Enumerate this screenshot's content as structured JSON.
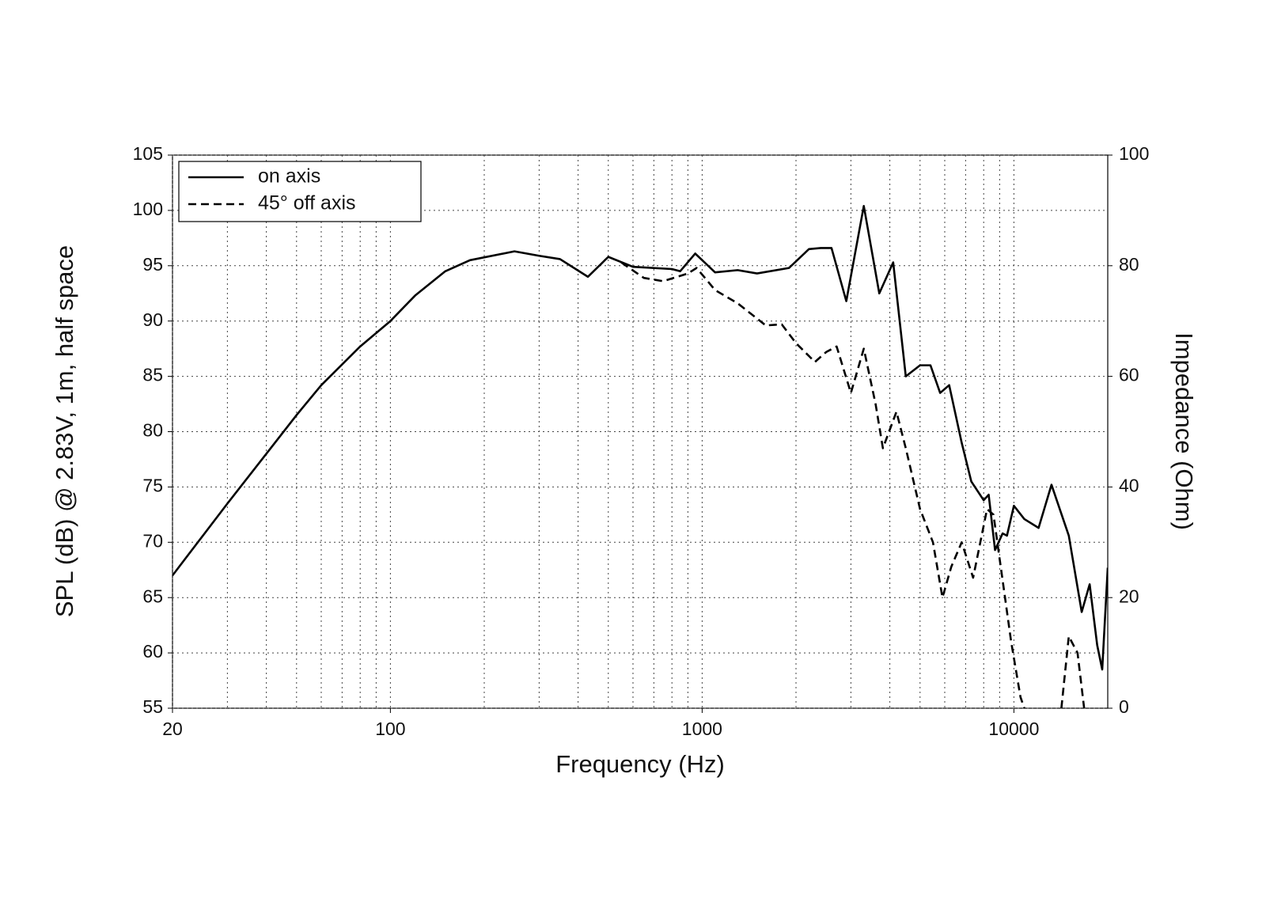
{
  "chart_data": {
    "type": "line",
    "x_label": "Frequency (Hz)",
    "y_label": "SPL (dB) @ 2.83V, 1m, half space",
    "y2_label": "Impedance (Ohm)",
    "xscale": "log",
    "xlim": [
      20,
      20000
    ],
    "xticks": [
      20,
      100,
      1000,
      10000
    ],
    "ylim": [
      55,
      105
    ],
    "yticks": [
      55,
      60,
      65,
      70,
      75,
      80,
      85,
      90,
      95,
      100,
      105
    ],
    "y2lim": [
      0,
      100
    ],
    "y2ticks": [
      0,
      20,
      40,
      60,
      80,
      100
    ],
    "grid": true,
    "legend": "top-left",
    "series": [
      {
        "name": "on axis",
        "color": "#000000",
        "style": "solid",
        "x": [
          20,
          30,
          40,
          50,
          60,
          80,
          100,
          120,
          150,
          180,
          250,
          300,
          350,
          430,
          500,
          600,
          800,
          850,
          950,
          1100,
          1300,
          1500,
          1900,
          2200,
          2400,
          2600,
          2900,
          3300,
          3700,
          4100,
          4500,
          5000,
          5400,
          5800,
          6200,
          6800,
          7300,
          8000,
          8300,
          8700,
          9200,
          9500,
          10000,
          10800,
          12000,
          13200,
          15000,
          16500,
          17500,
          18500,
          19200,
          20000
        ],
        "values": [
          67,
          73.5,
          78,
          81.5,
          84.2,
          87.7,
          90,
          92.3,
          94.5,
          95.5,
          96.3,
          95.9,
          95.6,
          94,
          95.8,
          94.9,
          94.7,
          94.5,
          96.1,
          94.4,
          94.6,
          94.3,
          94.8,
          96.5,
          96.6,
          96.6,
          91.8,
          100.4,
          92.5,
          95.3,
          85,
          86,
          86,
          83.5,
          84.2,
          79,
          75.5,
          73.8,
          74.3,
          69.3,
          70.8,
          70.6,
          73.3,
          72.1,
          71.3,
          75.2,
          70.6,
          63.7,
          66.2,
          60.7,
          58.5,
          67.7
        ]
      },
      {
        "name": "45° off axis",
        "color": "#000000",
        "style": "dashed",
        "x": [
          550,
          650,
          750,
          900,
          960,
          1100,
          1300,
          1600,
          1800,
          2000,
          2300,
          2500,
          2700,
          3000,
          3300,
          3600,
          3800,
          4200,
          4500,
          5000,
          5500,
          5900,
          6300,
          6800,
          7400,
          8200,
          8600,
          9000,
          9800,
          10500,
          10800,
          12500,
          14200,
          15000,
          16000,
          16800
        ],
        "values": [
          95.3,
          93.9,
          93.6,
          94.3,
          94.8,
          92.8,
          91.6,
          89.6,
          89.7,
          88,
          86.3,
          87.2,
          87.7,
          83.5,
          87.5,
          82.5,
          78.5,
          81.8,
          78.5,
          73,
          70,
          65,
          67.8,
          70,
          66.8,
          73,
          72.5,
          68.5,
          61,
          56,
          55,
          null,
          55,
          61.5,
          60,
          55
        ]
      }
    ]
  }
}
